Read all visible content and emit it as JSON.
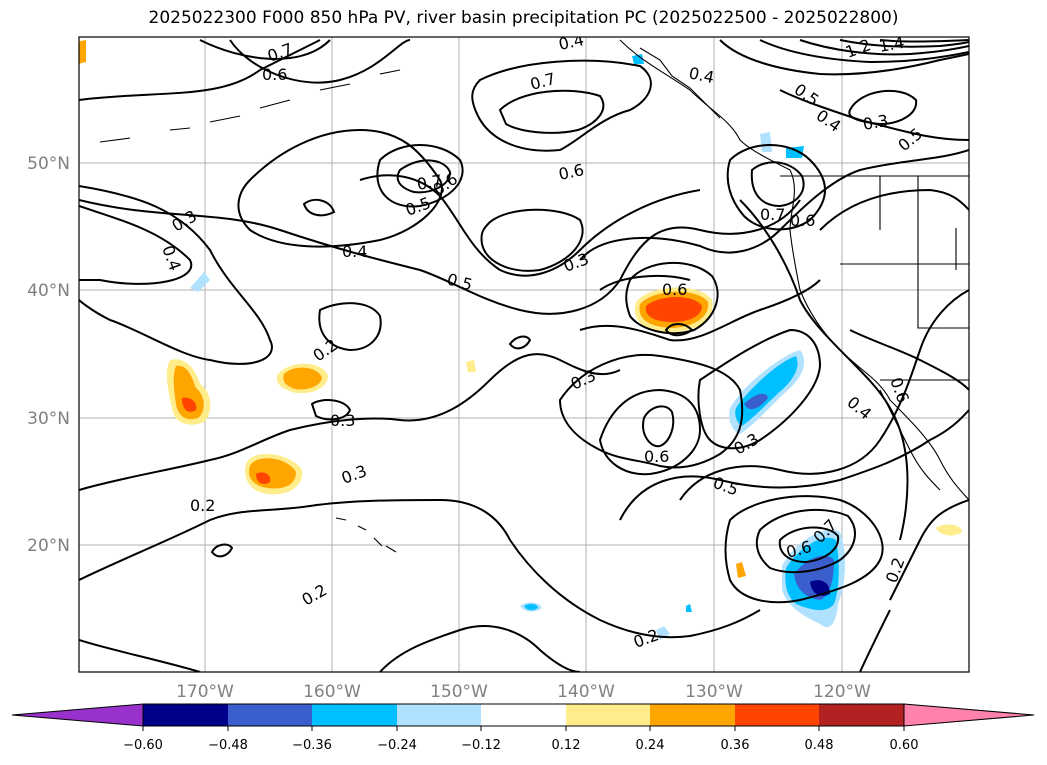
{
  "title": "2025022300 F000 850 hPa PV, river basin precipitation PC (2025022500 - 2025022800)",
  "map": {
    "lat_ticks": [
      "50°N",
      "40°N",
      "30°N",
      "20°N"
    ],
    "lon_ticks": [
      "170°W",
      "160°W",
      "150°W",
      "140°W",
      "130°W",
      "120°W"
    ],
    "grid": true
  },
  "contour_labels": [
    "0.4",
    "0.7",
    "0.6",
    "0.7",
    "0.4",
    "0.5",
    "0.4",
    "1.2",
    "1.4",
    "0.3",
    "0.5",
    "0.6",
    "0.7",
    "0.6",
    "0.5",
    "0.3",
    "0.4",
    "0.4",
    "0.3",
    "0.5",
    "0.6",
    "0.7",
    "0.6",
    "0.2",
    "0.3",
    "0.3",
    "0.6",
    "0.3",
    "0.4",
    "0.6",
    "0.5",
    "0.3",
    "0.2",
    "0.6",
    "0.7",
    "0.2",
    "0.2",
    "0.2"
  ],
  "colorbar": {
    "tick_labels": [
      "−0.60",
      "−0.48",
      "−0.36",
      "−0.24",
      "−0.12",
      "0.12",
      "0.24",
      "0.36",
      "0.48",
      "0.60"
    ],
    "colors": [
      "#9932cc",
      "#00008b",
      "#3a5fcd",
      "#00bfff",
      "#b0e2ff",
      "#ffffff",
      "#ffec8b",
      "#ffa500",
      "#ff4500",
      "#b22222",
      "#ff82ab"
    ]
  }
}
